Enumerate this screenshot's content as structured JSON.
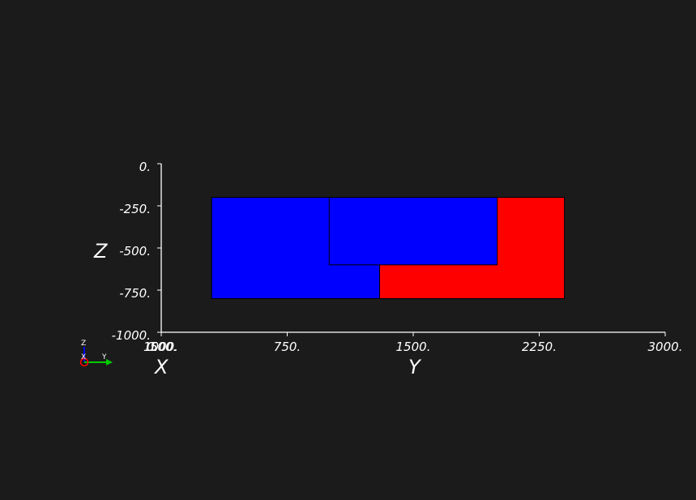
{
  "background_color": "#1b1b1b",
  "axes": {
    "y_axis": {
      "title": "Y",
      "range": [
        0,
        3000
      ],
      "tick_labels": [
        "0.",
        "750.",
        "1500.",
        "2250.",
        "3000."
      ],
      "tick_values": [
        0,
        750,
        1500,
        2250,
        3000
      ]
    },
    "z_axis": {
      "title": "Z",
      "range": [
        -1000,
        0
      ],
      "tick_labels": [
        "0.",
        "-250.",
        "-500.",
        "-750.",
        "-1000."
      ],
      "tick_values": [
        0,
        -250,
        -500,
        -750,
        -1000
      ]
    },
    "x_axis": {
      "title": "X",
      "overlapping_tick_labels": [
        "1000.",
        "0.",
        "500."
      ]
    },
    "axis_color": "#ffffff"
  },
  "blocks": [
    {
      "name": "red-block",
      "color": "#ff0000",
      "y_range": [
        300,
        2400
      ],
      "z_range": [
        -800,
        -200
      ]
    },
    {
      "name": "blue-block-left",
      "color": "#0000ff",
      "y_range": [
        300,
        1300
      ],
      "z_range": [
        -800,
        -200
      ]
    },
    {
      "name": "blue-block-upper",
      "color": "#0000ff",
      "y_range": [
        1000,
        2000
      ],
      "z_range": [
        -600,
        -200
      ]
    }
  ],
  "orientation_triad": {
    "labels": {
      "z": "Z",
      "x": "X",
      "y": "Y"
    },
    "colors": {
      "z": "#0000ff",
      "x": "#ff0000",
      "y": "#00cc00"
    }
  }
}
